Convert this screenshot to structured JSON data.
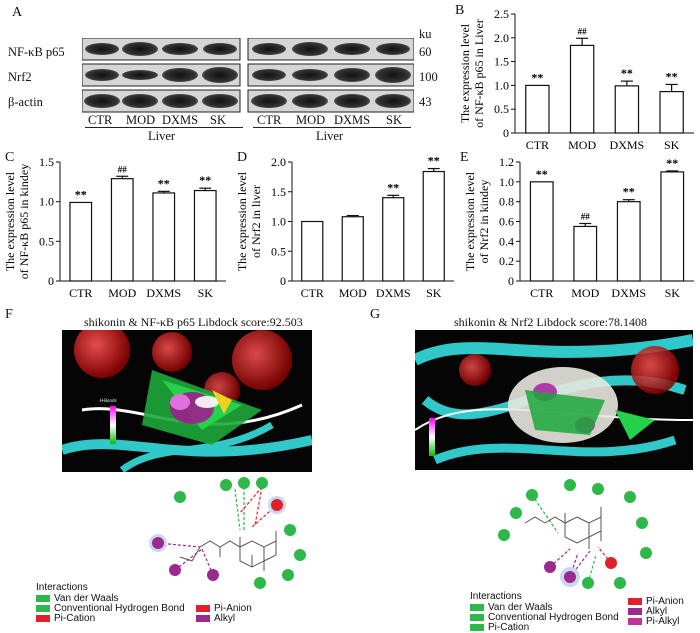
{
  "panels": {
    "A": "A",
    "B": "B",
    "C": "C",
    "D": "D",
    "E": "E",
    "F": "F",
    "G": "G"
  },
  "blot": {
    "rows": [
      "NF-κB p65",
      "Nrf2",
      "β-actin"
    ],
    "ku": {
      "header": "ku",
      "values": [
        "60",
        "100",
        "43"
      ]
    },
    "lanes_left": [
      "CTR",
      "MOD",
      "DXMS",
      "SK"
    ],
    "lanes_right": [
      "CTR",
      "MOD",
      "DXMS",
      "SK"
    ],
    "tissue_left": "Liver",
    "tissue_right": "Liver"
  },
  "chart_data": [
    {
      "id": "B",
      "type": "bar",
      "categories": [
        "CTR",
        "MOD",
        "DXMS",
        "SK"
      ],
      "values": [
        1.0,
        1.84,
        0.99,
        0.87
      ],
      "errors": [
        0.0,
        0.15,
        0.1,
        0.15
      ],
      "labels": [
        "**",
        "##",
        "**",
        "**"
      ],
      "ylabel_lines": [
        "The expression level",
        "of NF-κB p65 in Liver"
      ],
      "ylim": [
        0,
        2.5
      ],
      "ticks": [
        "0",
        "0.5",
        "1.0",
        "1.5",
        "2.0",
        "2.5"
      ]
    },
    {
      "id": "C",
      "type": "bar",
      "categories": [
        "CTR",
        "MOD",
        "DXMS",
        "SK"
      ],
      "values": [
        0.99,
        1.29,
        1.11,
        1.14
      ],
      "errors": [
        0.0,
        0.03,
        0.02,
        0.03
      ],
      "labels": [
        "**",
        "##",
        "**",
        "**"
      ],
      "ylabel_lines": [
        "The expression level",
        "of NF-κB p65 in kindey"
      ],
      "ylim": [
        0,
        1.5
      ],
      "ticks": [
        "0",
        "0.5",
        "1.0",
        "1.5"
      ]
    },
    {
      "id": "D",
      "type": "bar",
      "categories": [
        "CTR",
        "MOD",
        "DXMS",
        "SK"
      ],
      "values": [
        1.0,
        1.08,
        1.4,
        1.84
      ],
      "errors": [
        0.0,
        0.02,
        0.04,
        0.05
      ],
      "labels": [
        "",
        "",
        "**",
        "**"
      ],
      "ylabel_lines": [
        "The expression level",
        "of Nrf2 in liver"
      ],
      "ylim": [
        0,
        2.0
      ],
      "ticks": [
        "0",
        "0.5",
        "1.0",
        "1.5",
        "2.0"
      ]
    },
    {
      "id": "E",
      "type": "bar",
      "categories": [
        "CTR",
        "MOD",
        "DXMS",
        "SK"
      ],
      "values": [
        1.0,
        0.55,
        0.8,
        1.1
      ],
      "errors": [
        0.0,
        0.03,
        0.02,
        0.01
      ],
      "labels": [
        "**",
        "##",
        "**",
        "**"
      ],
      "ylabel_lines": [
        "The expression level",
        "of Nrf2 in kindey"
      ],
      "ylim": [
        0,
        1.2
      ],
      "ticks": [
        "0",
        "0.2",
        "0.4",
        "0.6",
        "0.8",
        "1.0",
        "1.2"
      ]
    }
  ],
  "docking": {
    "F": {
      "title": "shikonin & NF-κB p65 Libdock score:92.503"
    },
    "G": {
      "title": "shikonin & Nrf2 Libdock score:78.1408"
    }
  },
  "legend_F": {
    "header": "Interactions",
    "items": [
      {
        "label": "Van der Waals",
        "color": "#2fb84a"
      },
      {
        "label": "Conventional Hydrogen Bond",
        "color": "#2fb84a"
      },
      {
        "label": "Pi-Cation",
        "color": "#e0202a"
      },
      {
        "label": "Pi-Anion",
        "color": "#e0202a"
      },
      {
        "label": "Alkyl",
        "color": "#9a2a8e"
      }
    ]
  },
  "legend_G": {
    "header": "Interactions",
    "items": [
      {
        "label": "Van der Waals",
        "color": "#2fb84a"
      },
      {
        "label": "Conventional Hydrogen Bond",
        "color": "#2fb84a"
      },
      {
        "label": "Pi-Cation",
        "color": "#2fb84a"
      },
      {
        "label": "Pi-Anion",
        "color": "#e0202a"
      },
      {
        "label": "Alkyl",
        "color": "#9a2a8e"
      },
      {
        "label": "Pi-Alkyl",
        "color": "#c0359a"
      }
    ]
  }
}
